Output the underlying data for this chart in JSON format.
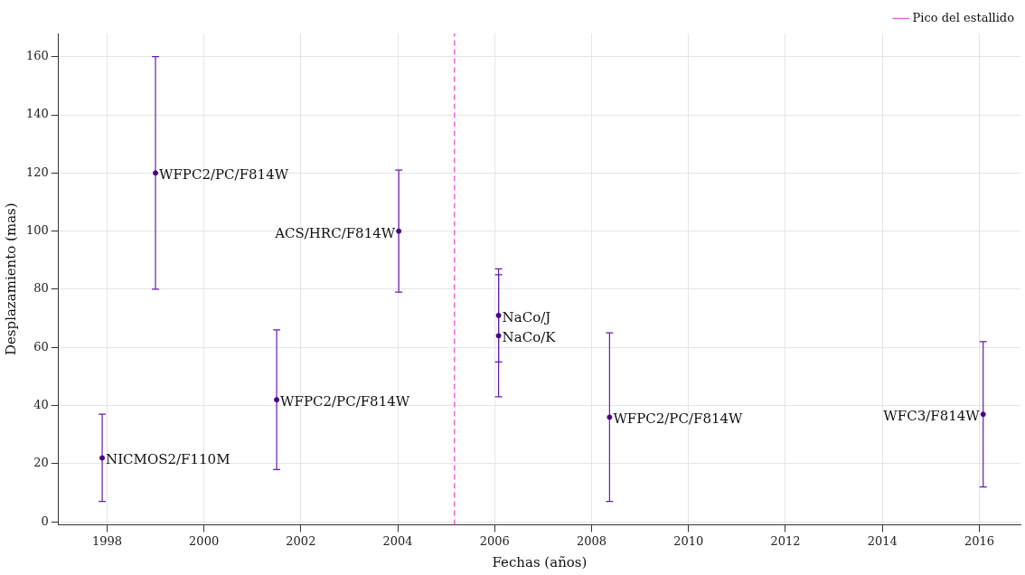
{
  "chart_data": {
    "type": "scatter",
    "xlabel": "Fechas (años)",
    "ylabel": "Desplazamiento (mas)",
    "x": [
      1997.9,
      1999.0,
      2001.5,
      2004.02,
      2006.08,
      2006.08,
      2008.37,
      2016.08
    ],
    "values": [
      22,
      120,
      42,
      100,
      71,
      64,
      36,
      37
    ],
    "errors": [
      [
        7,
        37
      ],
      [
        80,
        160
      ],
      [
        18,
        66
      ],
      [
        79,
        121
      ],
      [
        55,
        87
      ],
      [
        43,
        85
      ],
      [
        7,
        65
      ],
      [
        12,
        62
      ]
    ],
    "color": "#4b0082",
    "marker": "circle",
    "xlim": [
      1997,
      2016.85
    ],
    "xticks": [
      1998,
      2000,
      2002,
      2004,
      2006,
      2008,
      2010,
      2012,
      2014,
      2016
    ],
    "ylim": [
      -1,
      168
    ],
    "yticks": [
      0,
      20,
      40,
      60,
      80,
      100,
      120,
      140,
      160
    ],
    "grid": true,
    "legend": "top right",
    "ref_lines": [
      {
        "axis": "x",
        "value": 2005.17,
        "label": "Pico del estallido",
        "color": "#e066e0",
        "line_style": "dashed"
      }
    ],
    "annotations": [
      {
        "text": "NICMOS2/F110M",
        "x": 1997.9,
        "y": 22
      },
      {
        "text": "WFPC2/PC/F814W",
        "x": 1999.0,
        "y": 120
      },
      {
        "text": "WFPC2/PC/F814W",
        "x": 2001.5,
        "y": 42
      },
      {
        "text": "ACS/HRC/F814W",
        "x": 2004.02,
        "y": 100
      },
      {
        "text": "NaCo/J",
        "x": 2006.08,
        "y": 71
      },
      {
        "text": "NaCo/K",
        "x": 2006.08,
        "y": 64
      },
      {
        "text": "WFPC2/PC/F814W",
        "x": 2008.37,
        "y": 36
      },
      {
        "text": "WFC3/F814W",
        "x": 2016.08,
        "y": 37
      }
    ]
  }
}
